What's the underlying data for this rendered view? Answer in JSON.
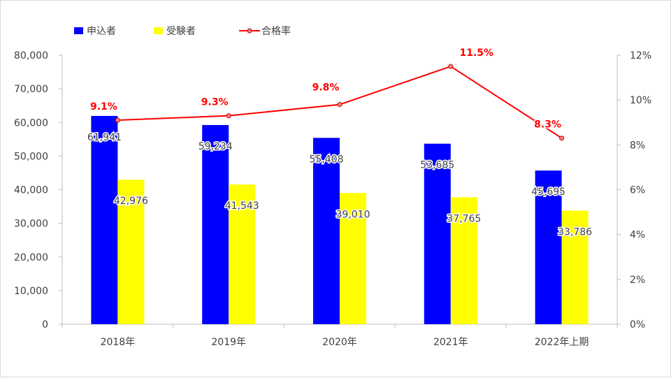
{
  "chart_data": {
    "type": "bar",
    "categories": [
      "2018年",
      "2019年",
      "2020年",
      "2021年",
      "2022年上期"
    ],
    "series": [
      {
        "name": "申込者",
        "type": "bar",
        "axis": "left",
        "color": "#0000ff",
        "values": [
          61941,
          59234,
          55408,
          53685,
          45695
        ],
        "labels": [
          "61,941",
          "59,234",
          "55,408",
          "53,685",
          "45,695"
        ]
      },
      {
        "name": "受験者",
        "type": "bar",
        "axis": "left",
        "color": "#ffff00",
        "values": [
          42976,
          41543,
          39010,
          37765,
          33786
        ],
        "labels": [
          "42,976",
          "41,543",
          "39,010",
          "37,765",
          "33,786"
        ]
      },
      {
        "name": "合格率",
        "type": "line",
        "axis": "right",
        "color": "#ff0000",
        "values": [
          9.1,
          9.3,
          9.8,
          11.5,
          8.3
        ],
        "labels": [
          "9.1%",
          "9.3%",
          "9.8%",
          "11.5%",
          "8.3%"
        ]
      }
    ],
    "y_left": {
      "min": 0,
      "max": 80000,
      "ticks": [
        "0",
        "10,000",
        "20,000",
        "30,000",
        "40,000",
        "50,000",
        "60,000",
        "70,000",
        "80,000"
      ]
    },
    "y_right": {
      "min": 0,
      "max": 12,
      "ticks": [
        "0%",
        "2%",
        "4%",
        "6%",
        "8%",
        "10%",
        "12%"
      ]
    },
    "legend_position": "top-left",
    "grid": false
  }
}
